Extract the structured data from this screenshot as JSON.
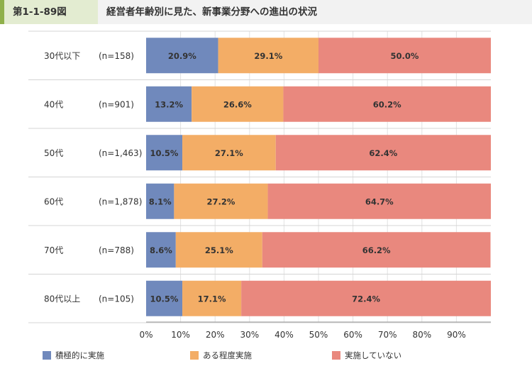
{
  "header": {
    "figure_number": "第1-1-89図",
    "title": "経営者年齢別に見た、新事業分野への進出の状況"
  },
  "colors": {
    "accent": "#8fb04a",
    "series": [
      "#7089bc",
      "#f3ad66",
      "#e9887e"
    ],
    "grid": "#e2e2e2",
    "row_divider": "#d4d4d4"
  },
  "chart_data": {
    "type": "bar",
    "orientation": "horizontal",
    "stacked": true,
    "title": "",
    "xlabel": "",
    "ylabel": "",
    "xlim": [
      0,
      100
    ],
    "grid": true,
    "legend_position": "bottom",
    "categories": [
      "30代以下",
      "40代",
      "50代",
      "60代",
      "70代",
      "80代以上"
    ],
    "counts": [
      "(n=158)",
      "(n=901)",
      "(n=1,463)",
      "(n=1,878)",
      "(n=788)",
      "(n=105)"
    ],
    "series": [
      {
        "name": "積極的に実施",
        "values": [
          20.9,
          13.2,
          10.5,
          8.1,
          8.6,
          10.5
        ]
      },
      {
        "name": "ある程度実施",
        "values": [
          29.1,
          26.6,
          27.1,
          27.2,
          25.1,
          17.1
        ]
      },
      {
        "name": "実施していない",
        "values": [
          50.0,
          60.2,
          62.4,
          64.7,
          66.2,
          72.4
        ]
      }
    ],
    "tick_labels": [
      "0%",
      "10%",
      "20%",
      "30%",
      "40%",
      "50%",
      "60%",
      "70%",
      "80%",
      "90%"
    ]
  }
}
